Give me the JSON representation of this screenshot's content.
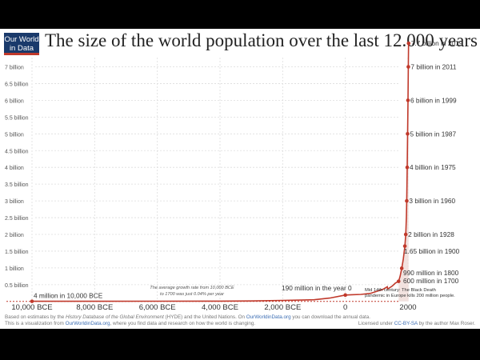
{
  "logo": {
    "line1": "Our World",
    "line2": "in Data"
  },
  "footer": {
    "line1_a": "Based on estimates by the ",
    "line1_b": "History Database of the Global Environment",
    "line1_c": " (HYDE) and the United Nations. On ",
    "line1_link": "OurWorldinData.org",
    "line1_d": " you can download the annual data.",
    "line2_a": "This is a visualization from ",
    "line2_link": "OurWorldinData.org",
    "line2_b": ", where you find data and research on how the world is changing.",
    "license_a": "Licensed under ",
    "license_link": "CC-BY-SA",
    "license_b": " by the author Max Roser."
  },
  "colors": {
    "line": "#c0392b",
    "grid": "#dddddd",
    "text": "#555555",
    "logo_bg": "#1a3a6b"
  },
  "chart_data": {
    "type": "line",
    "title": "The size of the world population over the last 12.000 years",
    "x_tick_labels": [
      {
        "x": -10000,
        "label": "10,000 BCE"
      },
      {
        "x": -8000,
        "label": "8,000 BCE"
      },
      {
        "x": -6000,
        "label": "6,000 BCE"
      },
      {
        "x": -4000,
        "label": "4,000 BCE"
      },
      {
        "x": -2000,
        "label": "2,000 BCE"
      },
      {
        "x": 0,
        "label": "0"
      },
      {
        "x": 2000,
        "label": "2000"
      }
    ],
    "y_tick_labels": [
      {
        "y": 0.5,
        "label": "0.5 billion"
      },
      {
        "y": 1,
        "label": "1 billion"
      },
      {
        "y": 1.5,
        "label": "1.5 billion"
      },
      {
        "y": 2,
        "label": "2 billion"
      },
      {
        "y": 2.5,
        "label": "2.5 billion"
      },
      {
        "y": 3,
        "label": "3 billion"
      },
      {
        "y": 3.5,
        "label": "3.5 billion"
      },
      {
        "y": 4,
        "label": "4 billion"
      },
      {
        "y": 4.5,
        "label": "4.5 billion"
      },
      {
        "y": 5,
        "label": "5 billion"
      },
      {
        "y": 5.5,
        "label": "5.5 billion"
      },
      {
        "y": 6,
        "label": "6 billion"
      },
      {
        "y": 6.5,
        "label": "6.5 billion"
      },
      {
        "y": 7,
        "label": "7 billion"
      }
    ],
    "xlim": [
      -10600,
      2200
    ],
    "ylim": [
      0,
      7.8
    ],
    "grid": true,
    "series": [
      {
        "points": [
          [
            -10000,
            0.004
          ],
          [
            -8000,
            0.005
          ],
          [
            -6000,
            0.006
          ],
          [
            -4000,
            0.01
          ],
          [
            -3000,
            0.015
          ],
          [
            -2000,
            0.03
          ],
          [
            -1000,
            0.05
          ],
          [
            -500,
            0.1
          ],
          [
            0,
            0.19
          ],
          [
            200,
            0.2
          ],
          [
            500,
            0.21
          ],
          [
            800,
            0.24
          ],
          [
            1000,
            0.3
          ],
          [
            1200,
            0.36
          ],
          [
            1340,
            0.44
          ],
          [
            1350,
            0.37
          ],
          [
            1500,
            0.46
          ],
          [
            1600,
            0.55
          ],
          [
            1700,
            0.6
          ],
          [
            1750,
            0.76
          ],
          [
            1800,
            0.99
          ],
          [
            1850,
            1.26
          ],
          [
            1900,
            1.65
          ],
          [
            1928,
            2.0
          ],
          [
            1950,
            2.53
          ],
          [
            1960,
            3.0
          ],
          [
            1975,
            4.0
          ],
          [
            1987,
            5.0
          ],
          [
            1999,
            6.0
          ],
          [
            2011,
            7.0
          ],
          [
            2019,
            7.7
          ]
        ]
      }
    ],
    "annotations": [
      {
        "x": -10000,
        "y": 0.004,
        "text": "4 million in 10,000 BCE",
        "marker": true
      },
      {
        "x": 0,
        "y": 0.19,
        "text": "190 million in the year 0",
        "marker": true
      },
      {
        "x": 1700,
        "y": 0.6,
        "text": "600 million in 1700",
        "marker": true
      },
      {
        "x": 1800,
        "y": 0.99,
        "text": "990 million in 1800",
        "marker": true
      },
      {
        "x": 1900,
        "y": 1.65,
        "text": "1.65 billion in 1900",
        "marker": true
      },
      {
        "x": 1928,
        "y": 2.0,
        "text": "2 billion in 1928",
        "marker": true
      },
      {
        "x": 1960,
        "y": 3.0,
        "text": "3 billion in 1960",
        "marker": true
      },
      {
        "x": 1975,
        "y": 4.0,
        "text": "4 billion in 1975",
        "marker": true
      },
      {
        "x": 1987,
        "y": 5.0,
        "text": "5 billion in 1987",
        "marker": true
      },
      {
        "x": 1999,
        "y": 6.0,
        "text": "6 billion in 1999",
        "marker": true
      },
      {
        "x": 2011,
        "y": 7.0,
        "text": "7 billion in 2011",
        "marker": true
      },
      {
        "x": 2019,
        "y": 7.7,
        "text": "7.7 billion in 2019",
        "marker": true
      }
    ],
    "notes": {
      "growth_line1": "The average growth rate from 10,000 BCE",
      "growth_line2": "to 1700 was just  0.04% per year",
      "death_line1": "Mid 14th century: The Black Death",
      "death_line2": "pandemic in Europe kills 200 million people."
    }
  }
}
